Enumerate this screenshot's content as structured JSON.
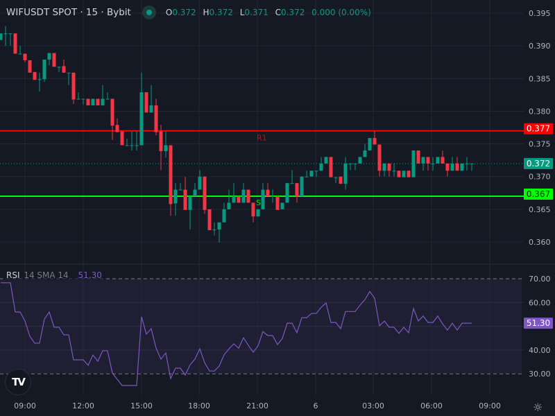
{
  "header": {
    "symbol": "WIFUSDT SPOT · 15 · Bybit",
    "ohlc": [
      {
        "key": "O",
        "value": "0.372"
      },
      {
        "key": "H",
        "value": "0.372"
      },
      {
        "key": "L",
        "value": "0.371"
      },
      {
        "key": "C",
        "value": "0.372"
      }
    ],
    "change": "0.000 (0.00%)",
    "market_status": "open"
  },
  "rsi_legend": {
    "name": "RSI",
    "params": "14 SMA 14",
    "value": "51.30"
  },
  "logo": "TV",
  "settings_icon": "gear-icon",
  "colors": {
    "up": "#089981",
    "down": "#f23645",
    "resistance": "#ff0000",
    "support": "#00ff00",
    "rsi": "#7e57c2",
    "bg": "#151924"
  },
  "chart_data": [
    {
      "type": "candlestick",
      "title": "WIFUSDT SPOT · 15 · Bybit",
      "ylim": [
        0.3575,
        0.3975
      ],
      "y_ticks": [
        "0.395",
        "0.390",
        "0.385",
        "0.380",
        "0.375",
        "0.370",
        "0.365",
        "0.360"
      ],
      "x_ticks": [
        "09:00",
        "12:00",
        "15:00",
        "18:00",
        "21:00",
        "6",
        "03:00",
        "06:00",
        "09:00"
      ],
      "last_price": "0.372",
      "levels": [
        {
          "label": "R1",
          "value": 0.377,
          "price_label": "0.377",
          "color": "#ff0000"
        },
        {
          "label": "S",
          "value": 0.367,
          "price_label": "0.367",
          "color": "#00ff00"
        }
      ],
      "ohlc": [
        [
          0.3909,
          0.3919,
          0.3909,
          0.3919
        ],
        [
          0.3919,
          0.393,
          0.39,
          0.3919
        ],
        [
          0.3919,
          0.3919,
          0.39,
          0.3919
        ],
        [
          0.3919,
          0.3919,
          0.3888,
          0.3888
        ],
        [
          0.3888,
          0.39,
          0.3888,
          0.3888
        ],
        [
          0.3888,
          0.3888,
          0.3875,
          0.3878
        ],
        [
          0.3878,
          0.3878,
          0.3859,
          0.3859
        ],
        [
          0.386,
          0.386,
          0.3848,
          0.3848
        ],
        [
          0.3849,
          0.3859,
          0.383,
          0.3849
        ],
        [
          0.3849,
          0.3879,
          0.3845,
          0.3879
        ],
        [
          0.3879,
          0.3889,
          0.387,
          0.3889
        ],
        [
          0.3889,
          0.3889,
          0.3868,
          0.3868
        ],
        [
          0.3868,
          0.3868,
          0.386,
          0.3868
        ],
        [
          0.3869,
          0.3879,
          0.3859,
          0.3859
        ],
        [
          0.3859,
          0.3859,
          0.384,
          0.3859
        ],
        [
          0.3859,
          0.3859,
          0.3811,
          0.3818
        ],
        [
          0.3819,
          0.3829,
          0.3819,
          0.3819
        ],
        [
          0.3819,
          0.3819,
          0.381,
          0.3819
        ],
        [
          0.3819,
          0.3819,
          0.3809,
          0.3809
        ],
        [
          0.3809,
          0.3819,
          0.3809,
          0.3819
        ],
        [
          0.3819,
          0.3819,
          0.3809,
          0.3809
        ],
        [
          0.3809,
          0.384,
          0.3809,
          0.3819
        ],
        [
          0.3819,
          0.3829,
          0.3819,
          0.3819
        ],
        [
          0.3819,
          0.3819,
          0.3756,
          0.3778
        ],
        [
          0.3779,
          0.3789,
          0.3768,
          0.3768
        ],
        [
          0.3769,
          0.3769,
          0.3748,
          0.3748
        ],
        [
          0.3748,
          0.3758,
          0.3748,
          0.3748
        ],
        [
          0.3748,
          0.3769,
          0.374,
          0.3748
        ],
        [
          0.3748,
          0.3769,
          0.374,
          0.3748
        ],
        [
          0.3748,
          0.3859,
          0.3748,
          0.3829
        ],
        [
          0.3829,
          0.3829,
          0.3798,
          0.3798
        ],
        [
          0.3798,
          0.384,
          0.3798,
          0.3809
        ],
        [
          0.3809,
          0.3819,
          0.3763,
          0.3768
        ],
        [
          0.3769,
          0.3779,
          0.371,
          0.3739
        ],
        [
          0.3739,
          0.3769,
          0.3729,
          0.3748
        ],
        [
          0.3748,
          0.3748,
          0.364,
          0.3658
        ],
        [
          0.3659,
          0.369,
          0.364,
          0.368
        ],
        [
          0.368,
          0.369,
          0.368,
          0.368
        ],
        [
          0.368,
          0.37,
          0.3649,
          0.3649
        ],
        [
          0.3649,
          0.367,
          0.3619,
          0.367
        ],
        [
          0.367,
          0.369,
          0.367,
          0.368
        ],
        [
          0.368,
          0.371,
          0.368,
          0.37
        ],
        [
          0.37,
          0.37,
          0.3643,
          0.3649
        ],
        [
          0.365,
          0.365,
          0.3618,
          0.3618
        ],
        [
          0.3619,
          0.363,
          0.361,
          0.3619
        ],
        [
          0.3619,
          0.363,
          0.3599,
          0.363
        ],
        [
          0.363,
          0.366,
          0.363,
          0.365
        ],
        [
          0.365,
          0.368,
          0.365,
          0.366
        ],
        [
          0.366,
          0.369,
          0.366,
          0.367
        ],
        [
          0.367,
          0.367,
          0.366,
          0.366
        ],
        [
          0.366,
          0.369,
          0.366,
          0.368
        ],
        [
          0.368,
          0.368,
          0.366,
          0.366
        ],
        [
          0.366,
          0.366,
          0.363,
          0.3639
        ],
        [
          0.3639,
          0.365,
          0.3639,
          0.365
        ],
        [
          0.365,
          0.369,
          0.365,
          0.368
        ],
        [
          0.368,
          0.369,
          0.367,
          0.367
        ],
        [
          0.367,
          0.368,
          0.366,
          0.367
        ],
        [
          0.367,
          0.367,
          0.3649,
          0.3649
        ],
        [
          0.365,
          0.366,
          0.365,
          0.366
        ],
        [
          0.366,
          0.369,
          0.366,
          0.369
        ],
        [
          0.369,
          0.371,
          0.369,
          0.369
        ],
        [
          0.369,
          0.369,
          0.366,
          0.367
        ],
        [
          0.367,
          0.37,
          0.367,
          0.37
        ],
        [
          0.37,
          0.3709,
          0.37,
          0.37
        ],
        [
          0.37,
          0.3709,
          0.37,
          0.3709
        ],
        [
          0.3709,
          0.3709,
          0.37,
          0.3709
        ],
        [
          0.3709,
          0.373,
          0.3709,
          0.372
        ],
        [
          0.372,
          0.373,
          0.372,
          0.373
        ],
        [
          0.373,
          0.373,
          0.3699,
          0.3699
        ],
        [
          0.3699,
          0.3699,
          0.369,
          0.3699
        ],
        [
          0.37,
          0.37,
          0.3689,
          0.3689
        ],
        [
          0.3689,
          0.373,
          0.368,
          0.372
        ],
        [
          0.372,
          0.372,
          0.371,
          0.372
        ],
        [
          0.372,
          0.372,
          0.371,
          0.372
        ],
        [
          0.372,
          0.373,
          0.372,
          0.373
        ],
        [
          0.373,
          0.375,
          0.373,
          0.374
        ],
        [
          0.374,
          0.3759,
          0.374,
          0.3759
        ],
        [
          0.3759,
          0.377,
          0.3749,
          0.3749
        ],
        [
          0.3749,
          0.3749,
          0.37,
          0.3709
        ],
        [
          0.3709,
          0.372,
          0.37,
          0.372
        ],
        [
          0.372,
          0.372,
          0.37,
          0.3709
        ],
        [
          0.3709,
          0.372,
          0.37,
          0.3709
        ],
        [
          0.3709,
          0.3709,
          0.3699,
          0.3699
        ],
        [
          0.3699,
          0.3709,
          0.3699,
          0.3709
        ],
        [
          0.3709,
          0.3709,
          0.3699,
          0.3699
        ],
        [
          0.3699,
          0.374,
          0.3699,
          0.374
        ],
        [
          0.374,
          0.374,
          0.372,
          0.372
        ],
        [
          0.372,
          0.373,
          0.3709,
          0.373
        ],
        [
          0.373,
          0.373,
          0.3709,
          0.372
        ],
        [
          0.372,
          0.373,
          0.3709,
          0.372
        ],
        [
          0.372,
          0.373,
          0.372,
          0.373
        ],
        [
          0.373,
          0.374,
          0.372,
          0.372
        ],
        [
          0.372,
          0.372,
          0.37,
          0.3709
        ],
        [
          0.3709,
          0.373,
          0.3709,
          0.372
        ],
        [
          0.372,
          0.373,
          0.3709,
          0.3709
        ],
        [
          0.3709,
          0.372,
          0.3709,
          0.372
        ],
        [
          0.372,
          0.373,
          0.3709,
          0.372
        ],
        [
          0.372,
          0.372,
          0.3709,
          0.372
        ]
      ]
    },
    {
      "type": "line",
      "title": "RSI 14 SMA 14",
      "ylim": [
        20,
        75
      ],
      "y_ticks": [
        "70.00",
        "60.00",
        "40.00",
        "30.00"
      ],
      "band": [
        30,
        70
      ],
      "last_value": "51.30",
      "values": [
        68.3,
        68.3,
        68.3,
        56,
        56,
        52.2,
        45.8,
        42.9,
        42.9,
        53,
        56,
        49.6,
        49.6,
        46.4,
        46.4,
        35.9,
        35.9,
        35.9,
        33.6,
        37.9,
        35.3,
        39.7,
        39.7,
        30.3,
        27.7,
        25.1,
        25.1,
        25.1,
        25.1,
        54,
        46.7,
        49,
        40.8,
        36.2,
        38.8,
        28,
        32.4,
        32.4,
        29.5,
        33.8,
        36.2,
        40.5,
        34.7,
        31.2,
        31.2,
        33.3,
        38,
        40.5,
        42.6,
        40.8,
        45.2,
        42,
        39.1,
        41.8,
        47.8,
        46.1,
        46.1,
        42.3,
        44.9,
        51.3,
        51.3,
        47.3,
        53.6,
        53.6,
        55.4,
        55.4,
        58,
        59.8,
        51.6,
        51.6,
        49,
        56.2,
        56.2,
        56.2,
        58.9,
        61.2,
        64.6,
        61.8,
        50.2,
        52.2,
        49.6,
        49.6,
        47,
        49.6,
        47.3,
        57.5,
        52.2,
        54.3,
        51.6,
        51.6,
        54.3,
        51,
        48.4,
        51.3,
        48.4,
        51.3,
        51.3,
        51.3
      ]
    }
  ]
}
